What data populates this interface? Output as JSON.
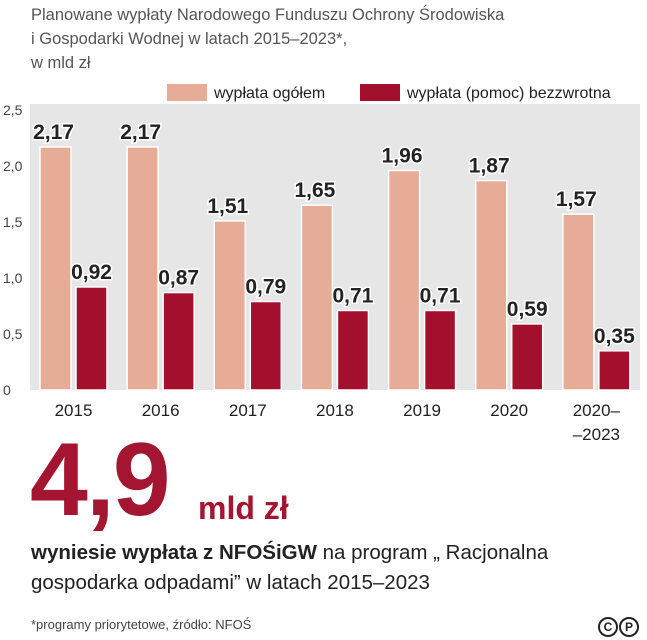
{
  "title_lines": [
    "Planowane wypłaty Narodowego Funduszu Ochrony Środowiska",
    "i Gospodarki Wodnej w latach 2015–2023*,",
    "w mld zł"
  ],
  "chart_data": {
    "type": "bar",
    "categories": [
      "2015",
      "2016",
      "2017",
      "2018",
      "2019",
      "2020",
      "2020–\n–2023"
    ],
    "series": [
      {
        "name": "wypłata ogółem",
        "color": "#e6ac97",
        "values": [
          2.17,
          2.17,
          1.51,
          1.65,
          1.96,
          1.87,
          1.57
        ],
        "labels": [
          "2,17",
          "2,17",
          "1,51",
          "1,65",
          "1,96",
          "1,87",
          "1,57"
        ]
      },
      {
        "name": "wypłata (pomoc) bezzwrotna",
        "color": "#a3102e",
        "values": [
          0.92,
          0.87,
          0.79,
          0.71,
          0.71,
          0.59,
          0.35
        ],
        "labels": [
          "0,92",
          "0,87",
          "0,79",
          "0,71",
          "0,71",
          "0,59",
          "0,35"
        ]
      }
    ],
    "yticks": [
      "0",
      "0,5",
      "1,0",
      "1,5",
      "2,0",
      "2,5"
    ],
    "ylim": [
      0,
      2.5
    ],
    "grid": false,
    "legend": "top-right",
    "background_color": "#e6e6e6"
  },
  "highlight": {
    "value": "4,9",
    "unit": "mld zł",
    "desc_bold": "wyniesie wypłata z NFOŚiGW",
    "desc_rest": " na program „ Racjonalna gospodarka odpadami” w latach 2015–2023"
  },
  "footnote": "*programy priorytetowe, źródło: NFOŚ",
  "logo": {
    "letters": [
      "C",
      "P"
    ]
  }
}
